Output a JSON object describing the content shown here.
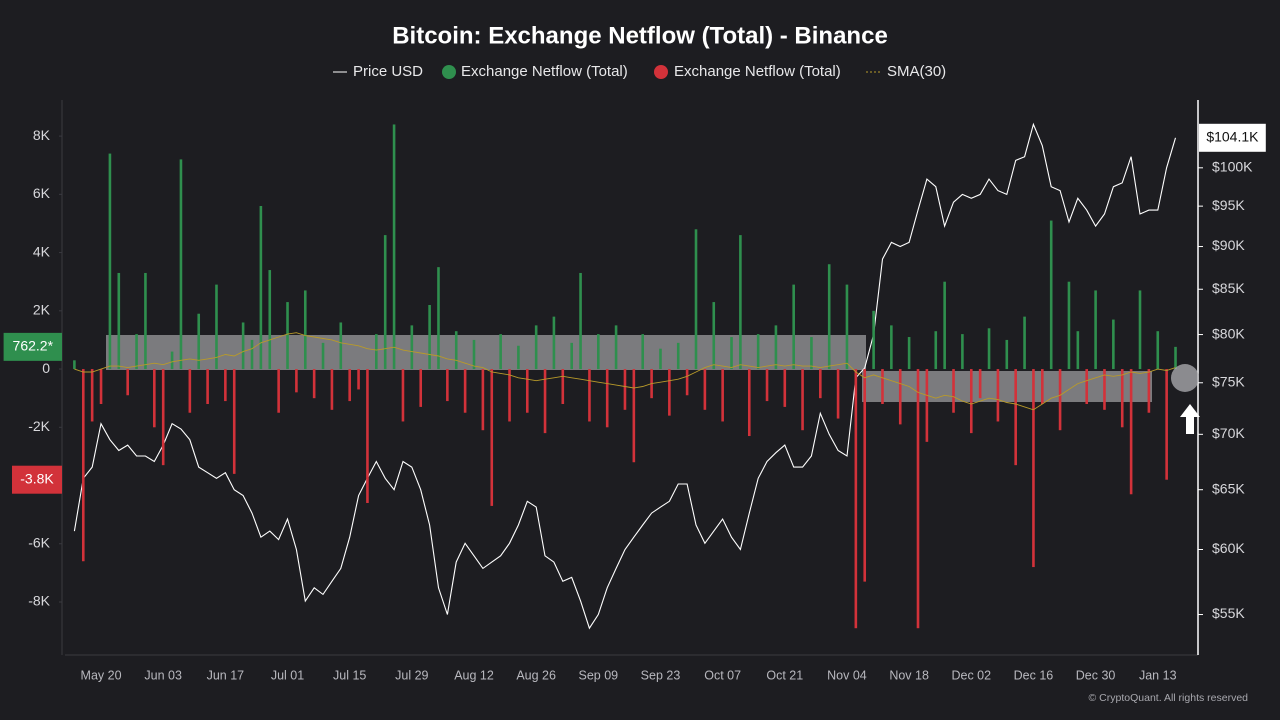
{
  "chart_data": {
    "type": "bar",
    "title": "Bitcoin: Exchange Netflow (Total) - Binance",
    "credit": "© CryptoQuant. All rights reserved",
    "categories": [
      null,
      null,
      null,
      "May 20",
      null,
      null,
      null,
      null,
      null,
      null,
      "Jun 03",
      null,
      null,
      null,
      null,
      null,
      null,
      "Jun 17",
      null,
      null,
      null,
      null,
      null,
      null,
      "Jul 01",
      null,
      null,
      null,
      null,
      null,
      null,
      "Jul 15",
      null,
      null,
      null,
      null,
      null,
      null,
      "Jul 29",
      null,
      null,
      null,
      null,
      null,
      null,
      "Aug 12",
      null,
      null,
      null,
      null,
      null,
      null,
      "Aug 26",
      null,
      null,
      null,
      null,
      null,
      null,
      "Sep 09",
      null,
      null,
      null,
      null,
      null,
      null,
      "Sep 23",
      null,
      null,
      null,
      null,
      null,
      null,
      "Oct 07",
      null,
      null,
      null,
      null,
      null,
      null,
      "Oct 21",
      null,
      null,
      null,
      null,
      null,
      null,
      "Nov 04",
      null,
      null,
      null,
      null,
      null,
      null,
      "Nov 18",
      null,
      null,
      null,
      null,
      null,
      null,
      "Dec 02",
      null,
      null,
      null,
      null,
      null,
      null,
      "Dec 16",
      null,
      null,
      null,
      null,
      null,
      null,
      "Dec 30",
      null,
      null,
      null,
      null,
      null,
      null,
      "Jan 13",
      null,
      null
    ],
    "series": [
      {
        "name": "Price USD",
        "type": "line",
        "axis": "y2",
        "color": "#ffffff",
        "values": [
          61500,
          66000,
          67000,
          71000,
          69500,
          68500,
          69000,
          68000,
          68000,
          67500,
          69000,
          71000,
          70500,
          69500,
          67000,
          66500,
          66000,
          66500,
          65000,
          64500,
          63000,
          61000,
          61500,
          60800,
          62500,
          60000,
          56000,
          57000,
          56500,
          57500,
          58500,
          61000,
          64500,
          66000,
          67500,
          66000,
          65000,
          67500,
          67000,
          65000,
          62000,
          57000,
          55000,
          59000,
          60500,
          59500,
          58500,
          59000,
          59500,
          60500,
          62000,
          64000,
          63500,
          59500,
          59000,
          57500,
          57800,
          56000,
          54000,
          55000,
          57000,
          58500,
          60000,
          61000,
          62000,
          63000,
          63500,
          64000,
          65500,
          65500,
          62000,
          60500,
          61500,
          62500,
          61000,
          60000,
          63000,
          66000,
          67500,
          68300,
          69000,
          67000,
          67000,
          68000,
          72000,
          70000,
          68500,
          68000,
          75500,
          76500,
          80000,
          88500,
          90500,
          90000,
          90500,
          94500,
          98500,
          97500,
          92500,
          95500,
          96500,
          96000,
          96500,
          98500,
          97000,
          96500,
          101000,
          101500,
          106000,
          103000,
          97500,
          97000,
          93000,
          96000,
          94500,
          92500,
          94000,
          97500,
          98000,
          101500,
          94000,
          94500,
          94500,
          100000,
          104100
        ]
      },
      {
        "name": "Exchange Netflow (Total)",
        "type": "bar",
        "axis": "y",
        "color": "#2f8f4e",
        "negative_color": "#d2323a",
        "values": [
          300,
          -6600,
          -1800,
          -1200,
          7400,
          3300,
          -900,
          1200,
          3300,
          -2000,
          -3300,
          600,
          7200,
          -1500,
          1900,
          -1200,
          2900,
          -1100,
          -3600,
          1600,
          1000,
          5600,
          3400,
          -1500,
          2300,
          -800,
          2700,
          -1000,
          900,
          -1400,
          1600,
          -1100,
          -700,
          -4600,
          1200,
          4600,
          8400,
          -1800,
          1500,
          -1300,
          2200,
          3500,
          -1100,
          1300,
          -1500,
          1000,
          -2100,
          -4700,
          1200,
          -1800,
          800,
          -1500,
          1500,
          -2200,
          1800,
          -1200,
          900,
          3300,
          -1800,
          1200,
          -2000,
          1500,
          -1400,
          -3200,
          1200,
          -1000,
          700,
          -1600,
          900,
          -900,
          4800,
          -1400,
          2300,
          -1800,
          1100,
          4600,
          -2300,
          1200,
          -1100,
          1500,
          -1300,
          2900,
          -2100,
          1100,
          -1000,
          3600,
          -1700,
          2900,
          -8900,
          -7300,
          2000,
          -1200,
          1500,
          -1900,
          1100,
          -8900,
          -2500,
          1300,
          3000,
          -1500,
          1200,
          -2200,
          -1000,
          1400,
          -1800,
          1000,
          -3300,
          1800,
          -6800,
          -1200,
          5100,
          -2100,
          3000,
          1300,
          -1200,
          2700,
          -1400,
          1700,
          -2000,
          -4300,
          2700,
          -1500,
          1300,
          -3800,
          762.2
        ]
      },
      {
        "name": "SMA(30)",
        "type": "line",
        "axis": "y",
        "color": "#b89a2a",
        "values": [
          0,
          -100,
          -100,
          0,
          100,
          100,
          50,
          100,
          150,
          200,
          150,
          250,
          300,
          350,
          300,
          350,
          400,
          500,
          450,
          600,
          700,
          900,
          1000,
          1100,
          1200,
          1250,
          1150,
          1100,
          1050,
          1000,
          900,
          850,
          800,
          700,
          650,
          700,
          750,
          650,
          600,
          550,
          500,
          450,
          350,
          300,
          200,
          100,
          50,
          -100,
          -150,
          -200,
          -300,
          -350,
          -400,
          -350,
          -300,
          -250,
          -300,
          -350,
          -400,
          -450,
          -500,
          -550,
          -600,
          -650,
          -600,
          -500,
          -450,
          -400,
          -350,
          -250,
          -100,
          50,
          150,
          100,
          50,
          150,
          100,
          50,
          100,
          150,
          100,
          150,
          100,
          100,
          50,
          100,
          150,
          200,
          -100,
          -300,
          -200,
          -300,
          -400,
          -500,
          -600,
          -800,
          -900,
          -1000,
          -900,
          -950,
          -1100,
          -1200,
          -1100,
          -1000,
          -1050,
          -1150,
          -1200,
          -1300,
          -1400,
          -1200,
          -1000,
          -900,
          -700,
          -500,
          -400,
          -300,
          -200,
          -250,
          -200,
          -100,
          -150,
          -100,
          0,
          -50,
          50
        ]
      }
    ],
    "ylim": [
      -9820,
      9240
    ],
    "yticks": [
      {
        "value": -8000,
        "label": "-8K"
      },
      {
        "value": -6000,
        "label": "-6K"
      },
      {
        "value": -4000,
        "label": "-4K"
      },
      {
        "value": -2000,
        "label": "-2K"
      },
      0,
      {
        "value": 2000,
        "label": "2K"
      },
      {
        "value": 4000,
        "label": "4K"
      },
      {
        "value": 6000,
        "label": "6K"
      },
      {
        "value": 8000,
        "label": "8K"
      }
    ],
    "y2lim": [
      52100,
      109500
    ],
    "y2log": true,
    "y2ticks": [
      {
        "value": 55000,
        "label": "$55K"
      },
      {
        "value": 60000,
        "label": "$60K"
      },
      {
        "value": 65000,
        "label": "$65K"
      },
      {
        "value": 70000,
        "label": "$70K"
      },
      {
        "value": 75000,
        "label": "$75K"
      },
      {
        "value": 80000,
        "label": "$80K"
      },
      {
        "value": 85000,
        "label": "$85K"
      },
      {
        "value": 90000,
        "label": "$90K"
      },
      {
        "value": 95000,
        "label": "$95K"
      },
      {
        "value": 100000,
        "label": "$100K"
      }
    ],
    "annotations": [
      {
        "text": "762.2*",
        "value": 762.2,
        "axis": "y",
        "color": "#2f8f4e"
      },
      {
        "text": "-3.8K",
        "value": -3800,
        "axis": "y",
        "color": "#d2323a"
      },
      {
        "text": "$104.1K",
        "value": 104100,
        "axis": "y2",
        "color": "#ffffff"
      }
    ]
  }
}
